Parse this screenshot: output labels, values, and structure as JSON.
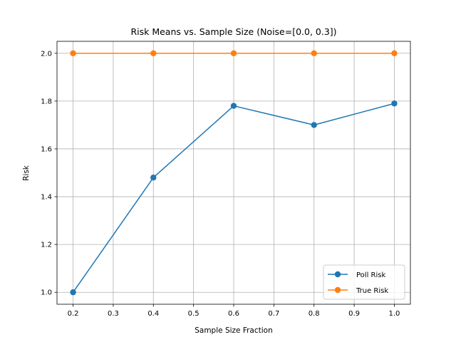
{
  "chart_data": {
    "type": "line",
    "title": "Risk Means vs. Sample Size (Noise=[0.0, 0.3])",
    "xlabel": "Sample Size Fraction",
    "ylabel": "Risk",
    "x": [
      0.2,
      0.4,
      0.6,
      0.8,
      1.0
    ],
    "xlim": [
      0.16,
      1.04
    ],
    "ylim": [
      0.95,
      2.05
    ],
    "xticks": [
      "0.2",
      "0.3",
      "0.4",
      "0.5",
      "0.6",
      "0.7",
      "0.8",
      "0.9",
      "1.0"
    ],
    "yticks": [
      "1.0",
      "1.2",
      "1.4",
      "1.6",
      "1.8",
      "2.0"
    ],
    "grid": true,
    "legend_position": "lower right",
    "series": [
      {
        "name": "Poll Risk",
        "color": "#1f77b4",
        "marker": "circle",
        "values": [
          1.0,
          1.48,
          1.78,
          1.7,
          1.79
        ]
      },
      {
        "name": "True Risk",
        "color": "#ff7f0e",
        "marker": "circle",
        "values": [
          2.0,
          2.0,
          2.0,
          2.0,
          2.0
        ]
      }
    ]
  }
}
